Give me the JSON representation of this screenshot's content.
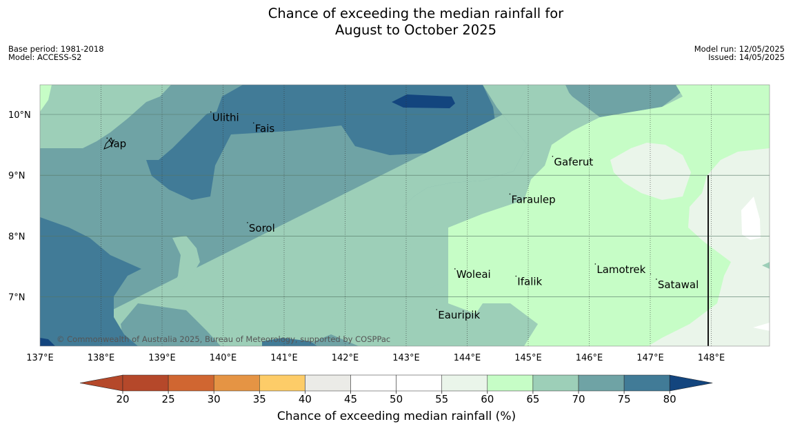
{
  "title": {
    "line1": "Chance of exceeding the median rainfall for",
    "line2": "August to October 2025"
  },
  "meta": {
    "base_period": "Base period: 1981-2018",
    "model": "Model: ACCESS-S2",
    "model_run": "Model run: 12/05/2025",
    "issued": "Issued: 14/05/2025"
  },
  "copyright": "© Commonwealth of Australia 2025, Bureau of Meteorology, supported by COSPPac",
  "map": {
    "lon_ticks": [
      "137°E",
      "138°E",
      "139°E",
      "140°E",
      "141°E",
      "142°E",
      "143°E",
      "144°E",
      "145°E",
      "146°E",
      "147°E",
      "148°E"
    ],
    "lat_ticks": [
      "10°N",
      "9°N",
      "8°N",
      "7°N"
    ],
    "places": [
      {
        "name": "Ulithi",
        "lon": 139.8,
        "lat": 9.95
      },
      {
        "name": "Fais",
        "lon": 140.5,
        "lat": 9.77
      },
      {
        "name": "Yap",
        "lon": 138.1,
        "lat": 9.52
      },
      {
        "name": "Gaferut",
        "lon": 145.4,
        "lat": 9.22
      },
      {
        "name": "Faraulep",
        "lon": 144.7,
        "lat": 8.6
      },
      {
        "name": "Sorol",
        "lon": 140.4,
        "lat": 8.13
      },
      {
        "name": "Woleai",
        "lon": 143.8,
        "lat": 7.37
      },
      {
        "name": "Ifalik",
        "lon": 144.8,
        "lat": 7.25
      },
      {
        "name": "Lamotrek",
        "lon": 146.1,
        "lat": 7.45
      },
      {
        "name": "Satawal",
        "lon": 147.1,
        "lat": 7.2
      },
      {
        "name": "Eauripik",
        "lon": 143.5,
        "lat": 6.7
      }
    ]
  },
  "colorbar": {
    "label": "Chance of exceeding median rainfall (%)",
    "ticks": [
      "20",
      "25",
      "30",
      "35",
      "40",
      "45",
      "50",
      "55",
      "60",
      "65",
      "70",
      "75",
      "80"
    ],
    "colors": [
      "#b5482a",
      "#b5482a",
      "#d06631",
      "#e59444",
      "#fdcc68",
      "#ebebe7",
      "#ffffff",
      "#ffffff",
      "#eaf5ea",
      "#c6fdc6",
      "#9dcfb8",
      "#6fa3a5",
      "#417b97",
      "#13457e"
    ]
  }
}
